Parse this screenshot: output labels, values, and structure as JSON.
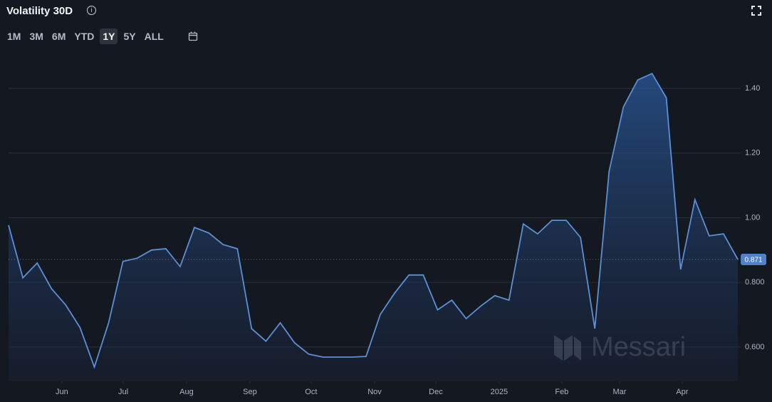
{
  "title": "Volatility 30D",
  "range_buttons": [
    "1M",
    "3M",
    "6M",
    "YTD",
    "1Y",
    "5Y",
    "ALL"
  ],
  "active_range_index": 4,
  "watermark": "Messari",
  "chart_data": {
    "type": "area",
    "series": [
      {
        "name": "Volatility 30D",
        "color": "#5b8fd6",
        "values": [
          0.977,
          0.814,
          0.86,
          0.781,
          0.73,
          0.66,
          0.538,
          0.675,
          0.865,
          0.875,
          0.9,
          0.904,
          0.849,
          0.97,
          0.953,
          0.917,
          0.904,
          0.657,
          0.618,
          0.675,
          0.613,
          0.578,
          0.569,
          0.569,
          0.569,
          0.571,
          0.701,
          0.767,
          0.823,
          0.823,
          0.715,
          0.745,
          0.688,
          0.726,
          0.759,
          0.745,
          0.981,
          0.95,
          0.992,
          0.992,
          0.939,
          0.657,
          1.144,
          1.343,
          1.426,
          1.446,
          1.371,
          0.84,
          1.056,
          0.944,
          0.95,
          0.871
        ]
      }
    ],
    "x": [
      0,
      1,
      2,
      3,
      4,
      5,
      6,
      7,
      8,
      9,
      10,
      11,
      12,
      13,
      14,
      15,
      16,
      17,
      18,
      19,
      20,
      21,
      22,
      23,
      24,
      25,
      26,
      27,
      28,
      29,
      30,
      31,
      32,
      33,
      34,
      35,
      36,
      37,
      38,
      39,
      40,
      41,
      42,
      43,
      44,
      45,
      46,
      47,
      48,
      49,
      50,
      51
    ],
    "xlim": [
      0,
      51
    ],
    "xticks": [
      {
        "value": 3.73,
        "label": "Jun"
      },
      {
        "value": 8.02,
        "label": "Jul"
      },
      {
        "value": 12.45,
        "label": "Aug"
      },
      {
        "value": 16.88,
        "label": "Sep"
      },
      {
        "value": 21.16,
        "label": "Oct"
      },
      {
        "value": 25.6,
        "label": "Nov"
      },
      {
        "value": 29.88,
        "label": "Dec"
      },
      {
        "value": 34.31,
        "label": "2025"
      },
      {
        "value": 38.69,
        "label": "Feb"
      },
      {
        "value": 42.73,
        "label": "Mar"
      },
      {
        "value": 47.11,
        "label": "Apr"
      }
    ],
    "ylim": [
      0.494,
      1.497
    ],
    "yticks": [
      {
        "value": 0.6,
        "label": "0.600"
      },
      {
        "value": 0.8,
        "label": "0.800"
      },
      {
        "value": 1,
        "label": "1.00"
      },
      {
        "value": 1.2,
        "label": "1.20"
      },
      {
        "value": 1.4,
        "label": "1.40"
      }
    ],
    "grid": true,
    "current_value": {
      "value": 0.871,
      "label": "0.871"
    }
  }
}
